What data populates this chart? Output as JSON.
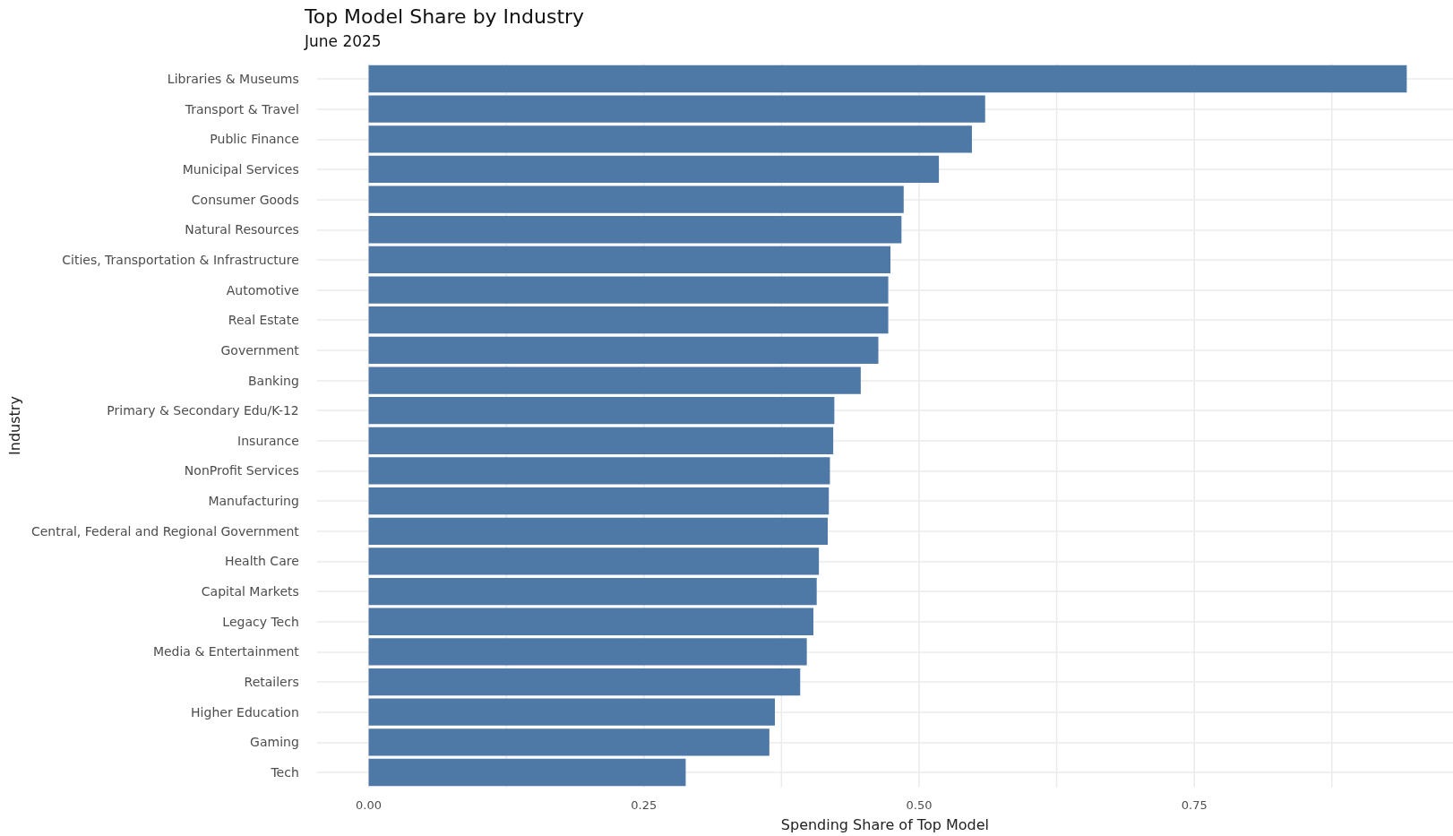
{
  "chart_data": {
    "type": "bar",
    "orientation": "horizontal",
    "title": "Top Model Share by Industry",
    "subtitle": "June 2025",
    "xlabel": "Spending Share of Top Model",
    "ylabel": "Industry",
    "categories": [
      "Libraries & Museums",
      "Transport & Travel",
      "Public Finance",
      "Municipal Services",
      "Consumer Goods",
      "Natural Resources",
      "Cities, Transportation & Infrastructure",
      "Automotive",
      "Real Estate",
      "Government",
      "Banking",
      "Primary & Secondary Edu/K-12",
      "Insurance",
      "NonProfit Services",
      "Manufacturing",
      "Central, Federal and Regional Government",
      "Health Care",
      "Capital Markets",
      "Legacy Tech",
      "Media & Entertainment",
      "Retailers",
      "Higher Education",
      "Gaming",
      "Tech"
    ],
    "values": [
      0.943,
      0.56,
      0.548,
      0.518,
      0.486,
      0.484,
      0.474,
      0.472,
      0.472,
      0.463,
      0.447,
      0.423,
      0.422,
      0.419,
      0.418,
      0.417,
      0.409,
      0.407,
      0.404,
      0.398,
      0.392,
      0.369,
      0.364,
      0.288
    ],
    "color": "#4e79a7",
    "xlim": [
      -0.047,
      0.985
    ],
    "xticks": [
      {
        "value": 0,
        "label": "0.00"
      },
      {
        "value": 0.125,
        "label": null
      },
      {
        "value": 0.25,
        "label": "0.25"
      },
      {
        "value": 0.375,
        "label": null
      },
      {
        "value": 0.5,
        "label": "0.50"
      },
      {
        "value": 0.625,
        "label": null
      },
      {
        "value": 0.75,
        "label": "0.75"
      },
      {
        "value": 0.875,
        "label": null
      }
    ],
    "grid": true
  }
}
